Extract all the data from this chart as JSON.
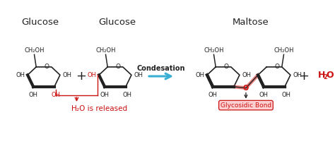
{
  "title_glucose1": "Glucose",
  "title_glucose2": "Glucose",
  "title_maltose": "Maltose",
  "condensation_label": "Condesation",
  "h2o_released_1": "H",
  "h2o_released_2": "2",
  "h2o_released_3": "O is released",
  "glycosidic_bond": "Glycosidic Bond",
  "h2o_product_1": "H",
  "h2o_product_2": "2",
  "h2o_product_3": "O",
  "bg_color": "#ffffff",
  "black": "#222222",
  "red": "#cc1111",
  "blue_arrow": "#3aafd4",
  "glycosidic_highlight": "#e88080",
  "glycosidic_box": "#fcd0d0",
  "ring_lw": 1.2,
  "bold_lw": 3.0
}
